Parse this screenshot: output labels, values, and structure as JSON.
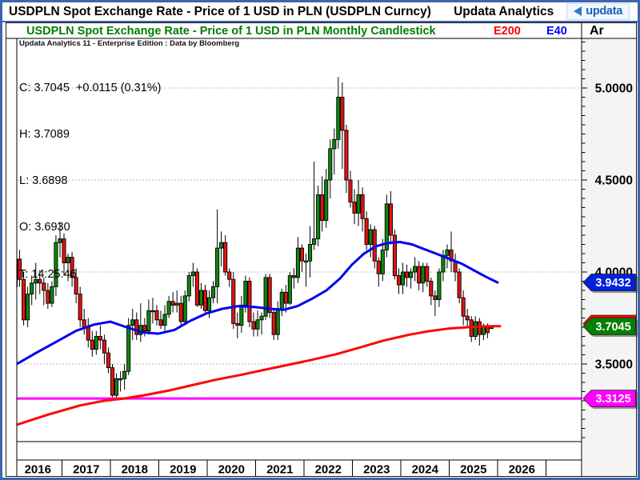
{
  "titlebar": {
    "title": "USDPLN Spot Exchange Rate - Price of 1 USD in PLN (USDPLN Curncy)",
    "app_name": "Updata Analytics",
    "logo_text": "updata"
  },
  "chart_header": {
    "title": "USDPLN Spot Exchange Rate - Price of 1 USD in PLN Monthly Candlestick",
    "e200_label": "E200",
    "e40_label": "E40",
    "ar_label": "Ar"
  },
  "credit_line": "Updata Analytics 11 - Enterprise Edition : Data by Bloomberg",
  "quote_info": {
    "close_line": "C: 3.7045  +0.0115 (0.31%)",
    "high_line": "H: 3.7089",
    "low_line": "L: 3.6898",
    "open_line": "O: 3.6930",
    "time_line": "T: 14:25:46"
  },
  "colors": {
    "frame_blue": "#3e66a8",
    "candle_up": "#0d860d",
    "candle_down": "#e31212",
    "e40_line": "#0000f0",
    "e200_line": "#ff0505",
    "support_line": "#ff00ff",
    "grid": "#aaaaaa",
    "axis_bg": "#f4f4f4"
  },
  "price_tags": [
    {
      "name": "e40-price-tag",
      "label": "3.9432",
      "value": 3.9432,
      "color": "#0022dd"
    },
    {
      "name": "last-price-tag",
      "label": "3.7045",
      "value": 3.7045,
      "color": "#018001",
      "backing_color": "#ff0000"
    },
    {
      "name": "support-price-tag",
      "label": "3.3125",
      "value": 3.3125,
      "color": "#ff00ff"
    }
  ],
  "chart_data": {
    "type": "candlestick",
    "title": "USDPLN Spot Exchange Rate - Price of 1 USD in PLN Monthly Candlestick",
    "x_years": [
      "2016",
      "2017",
      "2018",
      "2019",
      "2020",
      "2021",
      "2022",
      "2023",
      "2024",
      "2025",
      "2026"
    ],
    "y_axis_labels": [
      {
        "text": "5.0000",
        "value": 5.0
      },
      {
        "text": "4.5000",
        "value": 4.5
      },
      {
        "text": "4.0000",
        "value": 4.0
      },
      {
        "text": "3.5000",
        "value": 3.5
      }
    ],
    "y_gridlines": [
      5.0,
      4.5,
      4.0,
      3.5
    ],
    "y_range": [
      3.08,
      5.27
    ],
    "start_month": "2016-01",
    "last_quote": {
      "open": 3.693,
      "high": 3.7089,
      "low": 3.6898,
      "close": 3.7045,
      "change": 0.0115,
      "change_pct": 0.31,
      "time": "14:25:46"
    },
    "support_level": 3.3125,
    "ohlc": [
      [
        3.92,
        4.15,
        3.89,
        4.07
      ],
      [
        4.07,
        4.12,
        3.92,
        3.96
      ],
      [
        3.96,
        4.0,
        3.71,
        3.74
      ],
      [
        3.74,
        3.92,
        3.7,
        3.88
      ],
      [
        3.88,
        3.98,
        3.82,
        3.94
      ],
      [
        3.94,
        4.05,
        3.85,
        3.96
      ],
      [
        3.96,
        4.01,
        3.88,
        3.94
      ],
      [
        3.94,
        3.97,
        3.82,
        3.9
      ],
      [
        3.9,
        3.94,
        3.8,
        3.83
      ],
      [
        3.83,
        3.95,
        3.81,
        3.92
      ],
      [
        3.92,
        4.2,
        3.87,
        4.16
      ],
      [
        4.16,
        4.27,
        4.08,
        4.18
      ],
      [
        4.18,
        4.21,
        3.98,
        4.05
      ],
      [
        4.05,
        4.1,
        3.95,
        4.08
      ],
      [
        4.08,
        4.11,
        3.92,
        3.97
      ],
      [
        3.97,
        4.02,
        3.83,
        3.88
      ],
      [
        3.88,
        3.92,
        3.7,
        3.74
      ],
      [
        3.74,
        3.8,
        3.66,
        3.7
      ],
      [
        3.7,
        3.75,
        3.59,
        3.63
      ],
      [
        3.63,
        3.68,
        3.54,
        3.58
      ],
      [
        3.58,
        3.68,
        3.55,
        3.65
      ],
      [
        3.65,
        3.71,
        3.58,
        3.63
      ],
      [
        3.63,
        3.66,
        3.5,
        3.56
      ],
      [
        3.56,
        3.59,
        3.45,
        3.48
      ],
      [
        3.48,
        3.5,
        3.32,
        3.33
      ],
      [
        3.33,
        3.45,
        3.3125,
        3.42
      ],
      [
        3.42,
        3.46,
        3.35,
        3.42
      ],
      [
        3.42,
        3.5,
        3.36,
        3.46
      ],
      [
        3.46,
        3.75,
        3.44,
        3.71
      ],
      [
        3.71,
        3.8,
        3.63,
        3.74
      ],
      [
        3.74,
        3.78,
        3.63,
        3.66
      ],
      [
        3.66,
        3.83,
        3.62,
        3.71
      ],
      [
        3.71,
        3.75,
        3.65,
        3.68
      ],
      [
        3.68,
        3.85,
        3.66,
        3.79
      ],
      [
        3.79,
        3.86,
        3.72,
        3.79
      ],
      [
        3.79,
        3.82,
        3.71,
        3.74
      ],
      [
        3.74,
        3.79,
        3.69,
        3.71
      ],
      [
        3.71,
        3.82,
        3.68,
        3.77
      ],
      [
        3.77,
        3.87,
        3.75,
        3.84
      ],
      [
        3.84,
        3.89,
        3.78,
        3.82
      ],
      [
        3.82,
        3.9,
        3.78,
        3.83
      ],
      [
        3.83,
        3.87,
        3.71,
        3.73
      ],
      [
        3.73,
        3.9,
        3.71,
        3.87
      ],
      [
        3.87,
        4.0,
        3.84,
        3.98
      ],
      [
        3.98,
        4.05,
        3.92,
        4.0
      ],
      [
        4.0,
        4.02,
        3.81,
        3.82
      ],
      [
        3.82,
        3.94,
        3.8,
        3.9
      ],
      [
        3.9,
        3.93,
        3.78,
        3.79
      ],
      [
        3.79,
        3.9,
        3.75,
        3.86
      ],
      [
        3.86,
        3.95,
        3.83,
        3.92
      ],
      [
        3.92,
        4.34,
        3.83,
        4.13
      ],
      [
        4.13,
        4.22,
        4.03,
        4.16
      ],
      [
        4.16,
        4.2,
        3.98,
        4.0
      ],
      [
        4.0,
        4.02,
        3.92,
        3.96
      ],
      [
        3.96,
        4.0,
        3.69,
        3.72
      ],
      [
        3.72,
        3.78,
        3.64,
        3.71
      ],
      [
        3.71,
        3.87,
        3.67,
        3.82
      ],
      [
        3.82,
        3.98,
        3.78,
        3.95
      ],
      [
        3.95,
        3.97,
        3.7,
        3.73
      ],
      [
        3.73,
        3.78,
        3.65,
        3.69
      ],
      [
        3.69,
        3.79,
        3.65,
        3.74
      ],
      [
        3.74,
        3.78,
        3.66,
        3.76
      ],
      [
        3.76,
        3.99,
        3.74,
        3.97
      ],
      [
        3.97,
        3.99,
        3.75,
        3.78
      ],
      [
        3.78,
        3.8,
        3.63,
        3.66
      ],
      [
        3.66,
        3.84,
        3.63,
        3.8
      ],
      [
        3.8,
        3.91,
        3.76,
        3.89
      ],
      [
        3.89,
        3.93,
        3.78,
        3.83
      ],
      [
        3.83,
        4.0,
        3.82,
        3.98
      ],
      [
        3.98,
        4.02,
        3.91,
        3.97
      ],
      [
        3.97,
        4.19,
        3.94,
        4.13
      ],
      [
        4.13,
        4.15,
        4.0,
        4.06
      ],
      [
        4.06,
        4.1,
        3.92,
        4.06
      ],
      [
        4.06,
        4.25,
        3.97,
        4.15
      ],
      [
        4.15,
        4.6,
        4.12,
        4.18
      ],
      [
        4.18,
        4.47,
        4.14,
        4.42
      ],
      [
        4.42,
        4.52,
        4.22,
        4.28
      ],
      [
        4.28,
        4.56,
        4.24,
        4.5
      ],
      [
        4.5,
        4.72,
        4.4,
        4.67
      ],
      [
        4.67,
        4.78,
        4.53,
        4.72
      ],
      [
        4.72,
        5.06,
        4.67,
        4.95
      ],
      [
        4.95,
        5.03,
        4.56,
        4.77
      ],
      [
        4.77,
        4.8,
        4.43,
        4.5
      ],
      [
        4.5,
        4.55,
        4.35,
        4.38
      ],
      [
        4.38,
        4.45,
        4.26,
        4.32
      ],
      [
        4.32,
        4.5,
        4.25,
        4.42
      ],
      [
        4.42,
        4.46,
        4.22,
        4.29
      ],
      [
        4.29,
        4.33,
        4.12,
        4.15
      ],
      [
        4.15,
        4.26,
        4.08,
        4.23
      ],
      [
        4.23,
        4.25,
        4.02,
        4.06
      ],
      [
        4.06,
        4.08,
        3.92,
        3.99
      ],
      [
        3.99,
        4.18,
        3.95,
        4.12
      ],
      [
        4.12,
        4.42,
        4.08,
        4.37
      ],
      [
        4.37,
        4.44,
        4.15,
        4.2
      ],
      [
        4.2,
        4.23,
        3.96,
        3.98
      ],
      [
        3.98,
        4.02,
        3.88,
        3.93
      ],
      [
        3.93,
        4.05,
        3.88,
        4.0
      ],
      [
        4.0,
        4.04,
        3.92,
        3.97
      ],
      [
        3.97,
        4.02,
        3.91,
        4.0
      ],
      [
        4.0,
        4.08,
        3.95,
        4.03
      ],
      [
        4.03,
        4.06,
        3.9,
        3.94
      ],
      [
        3.94,
        4.05,
        3.89,
        4.03
      ],
      [
        4.03,
        4.05,
        3.92,
        3.95
      ],
      [
        3.95,
        3.97,
        3.82,
        3.87
      ],
      [
        3.87,
        3.9,
        3.76,
        3.85
      ],
      [
        3.85,
        4.02,
        3.81,
        4.0
      ],
      [
        4.0,
        4.12,
        3.95,
        4.09
      ],
      [
        4.09,
        4.15,
        4.02,
        4.12
      ],
      [
        4.12,
        4.22,
        4.0,
        4.06
      ],
      [
        4.06,
        4.1,
        3.95,
        4.0
      ],
      [
        4.0,
        4.02,
        3.83,
        3.86
      ],
      [
        3.86,
        3.9,
        3.71,
        3.76
      ],
      [
        3.76,
        3.8,
        3.7,
        3.74
      ],
      [
        3.74,
        3.76,
        3.62,
        3.65
      ],
      [
        3.65,
        3.76,
        3.63,
        3.73
      ],
      [
        3.73,
        3.75,
        3.6,
        3.66
      ],
      [
        3.66,
        3.72,
        3.63,
        3.7
      ],
      [
        3.7,
        3.72,
        3.64,
        3.67
      ],
      [
        3.693,
        3.7089,
        3.6898,
        3.7045
      ]
    ],
    "series": [
      {
        "name": "E40 moving average",
        "type": "line",
        "color": "#0000f0",
        "points": [
          [
            21,
            3.5
          ],
          [
            45,
            3.56
          ],
          [
            70,
            3.62
          ],
          [
            95,
            3.68
          ],
          [
            118,
            3.715
          ],
          [
            138,
            3.73
          ],
          [
            158,
            3.7
          ],
          [
            178,
            3.672
          ],
          [
            198,
            3.665
          ],
          [
            218,
            3.685
          ],
          [
            238,
            3.735
          ],
          [
            258,
            3.775
          ],
          [
            278,
            3.8
          ],
          [
            298,
            3.815
          ],
          [
            318,
            3.81
          ],
          [
            338,
            3.8
          ],
          [
            355,
            3.795
          ],
          [
            372,
            3.815
          ],
          [
            390,
            3.855
          ],
          [
            408,
            3.9
          ],
          [
            425,
            3.965
          ],
          [
            440,
            4.04
          ],
          [
            455,
            4.1
          ],
          [
            470,
            4.14
          ],
          [
            485,
            4.158
          ],
          [
            500,
            4.163
          ],
          [
            515,
            4.15
          ],
          [
            530,
            4.125
          ],
          [
            545,
            4.1
          ],
          [
            560,
            4.075
          ],
          [
            577,
            4.045
          ],
          [
            592,
            4.01
          ],
          [
            607,
            3.975
          ],
          [
            622,
            3.9432
          ]
        ]
      },
      {
        "name": "E200 moving average",
        "type": "line",
        "color": "#ff0505",
        "points": [
          [
            21,
            3.17
          ],
          [
            60,
            3.225
          ],
          [
            100,
            3.275
          ],
          [
            130,
            3.3
          ],
          [
            155,
            3.3125
          ],
          [
            180,
            3.33
          ],
          [
            210,
            3.355
          ],
          [
            240,
            3.385
          ],
          [
            270,
            3.415
          ],
          [
            300,
            3.44
          ],
          [
            330,
            3.468
          ],
          [
            360,
            3.495
          ],
          [
            390,
            3.523
          ],
          [
            420,
            3.553
          ],
          [
            450,
            3.59
          ],
          [
            480,
            3.628
          ],
          [
            510,
            3.658
          ],
          [
            535,
            3.678
          ],
          [
            560,
            3.692
          ],
          [
            585,
            3.7
          ],
          [
            610,
            3.705
          ],
          [
            625,
            3.705
          ]
        ]
      }
    ]
  }
}
